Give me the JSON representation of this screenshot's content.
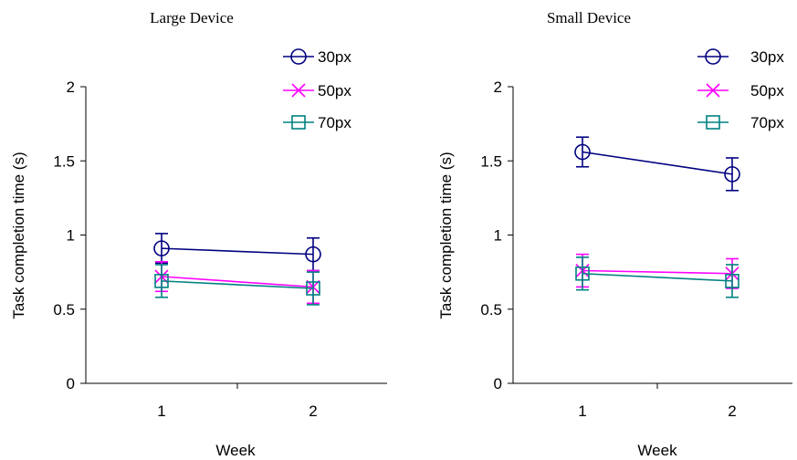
{
  "chart_data": [
    {
      "type": "line",
      "title": "Large Device",
      "xlabel": "Week",
      "ylabel": "Task completion time (s)",
      "categories": [
        "1",
        "2"
      ],
      "ylim": [
        0,
        2
      ],
      "yticks": [
        "0",
        "0.5",
        "1",
        "1.5",
        "2"
      ],
      "grid": false,
      "legend": "top-right",
      "series": [
        {
          "name": "30px",
          "values": [
            0.91,
            0.87
          ],
          "errors": [
            0.1,
            0.11
          ],
          "color": "#000080",
          "marker": "circle"
        },
        {
          "name": "50px",
          "values": [
            0.72,
            0.65
          ],
          "errors": [
            0.1,
            0.11
          ],
          "color": "#ff00ff",
          "marker": "x"
        },
        {
          "name": "70px",
          "values": [
            0.69,
            0.64
          ],
          "errors": [
            0.11,
            0.11
          ],
          "color": "#008080",
          "marker": "square"
        }
      ]
    },
    {
      "type": "line",
      "title": "Small Device",
      "xlabel": "Week",
      "ylabel": "Task completion time (s)",
      "categories": [
        "1",
        "2"
      ],
      "ylim": [
        0,
        2
      ],
      "yticks": [
        "0",
        "0.5",
        "1",
        "1.5",
        "2"
      ],
      "grid": false,
      "legend": "top-right",
      "series": [
        {
          "name": "30px",
          "values": [
            1.56,
            1.41
          ],
          "errors": [
            0.1,
            0.11
          ],
          "color": "#000080",
          "marker": "circle"
        },
        {
          "name": "50px",
          "values": [
            0.76,
            0.74
          ],
          "errors": [
            0.11,
            0.1
          ],
          "color": "#ff00ff",
          "marker": "x"
        },
        {
          "name": "70px",
          "values": [
            0.74,
            0.69
          ],
          "errors": [
            0.11,
            0.11
          ],
          "color": "#008080",
          "marker": "square"
        }
      ]
    }
  ]
}
